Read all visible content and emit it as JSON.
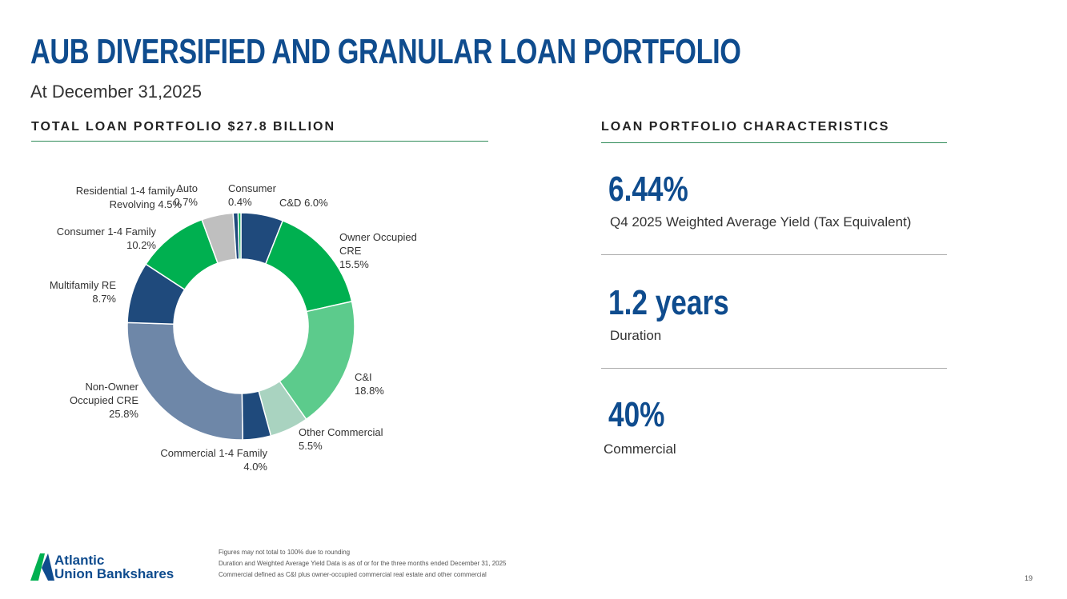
{
  "header": {
    "title": "AUB DIVERSIFIED AND GRANULAR LOAN PORTFOLIO",
    "subtitle": "At December 31,2025"
  },
  "left_section": {
    "title": "TOTAL LOAN PORTFOLIO $27.8 BILLION"
  },
  "chart_data": {
    "type": "donut",
    "categories": [
      "C&D",
      "Owner Occupied CRE",
      "C&I",
      "Other Commercial",
      "Commercial 1-4 Family",
      "Non-Owner Occupied CRE",
      "Multifamily RE",
      "Consumer 1-4 Family",
      "Residential 1-4 family - Revolving",
      "Auto",
      "Consumer"
    ],
    "values": [
      6.0,
      15.5,
      18.8,
      5.5,
      4.0,
      25.8,
      8.7,
      10.2,
      4.5,
      0.7,
      0.4
    ],
    "value_labels": [
      "6.0%",
      "15.5%",
      "18.8%",
      "5.5%",
      "4.0%",
      "25.8%",
      "8.7%",
      "10.2%",
      "4.5%",
      "0.7%",
      "0.4%"
    ],
    "colors": [
      "#1f4a7c",
      "#00b050",
      "#5ccb8c",
      "#a9d3c0",
      "#1f4a7c",
      "#6e87a8",
      "#1f4a7c",
      "#00b050",
      "#bfbfbf",
      "#1f4a7c",
      "#00b050"
    ]
  },
  "characteristics": {
    "title": "LOAN PORTFOLIO CHARACTERISTICS",
    "items": [
      {
        "value": "6.44%",
        "label": "Q4 2025 Weighted Average Yield (Tax Equivalent)"
      },
      {
        "value": "1.2 years",
        "label": "Duration"
      },
      {
        "value": "40%",
        "label": "Commercial"
      }
    ]
  },
  "footer": {
    "logo_line1": "Atlantic",
    "logo_line2": "Union Bankshares",
    "notes": [
      "Figures may not total to 100% due to rounding",
      "Duration and Weighted Average Yield Data is as of or for the three months ended December 31, 2025",
      "Commercial defined as C&I plus owner-occupied commercial real estate and other commercial"
    ],
    "page": "19"
  }
}
